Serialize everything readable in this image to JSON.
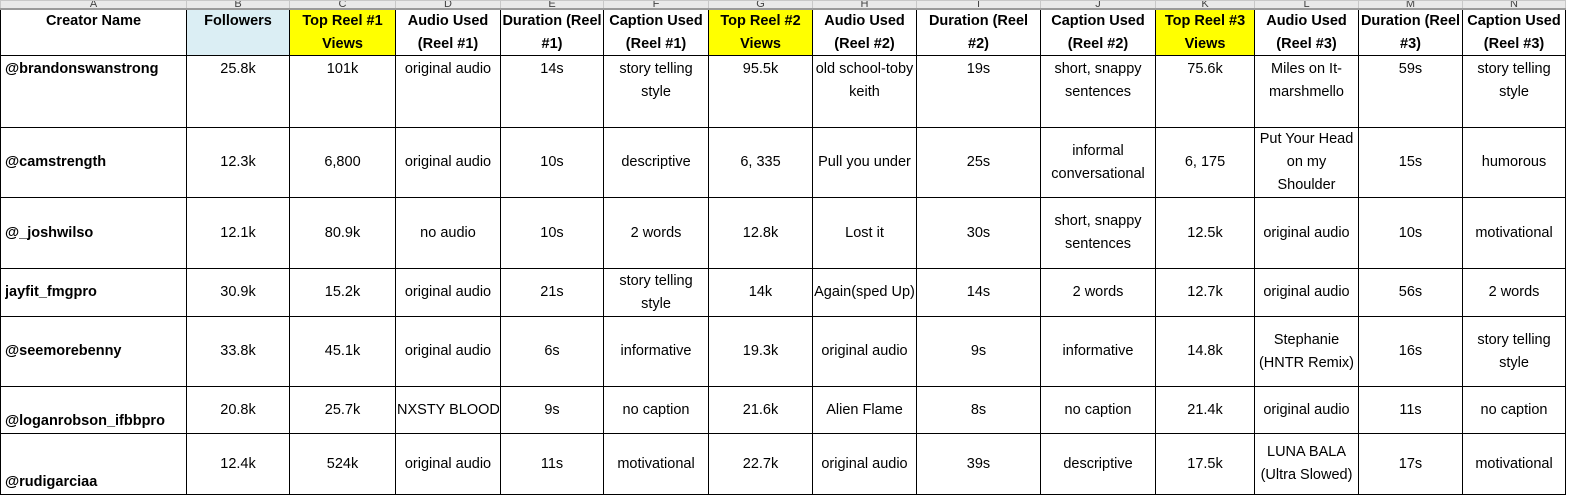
{
  "column_letters": [
    "A",
    "B",
    "C",
    "D",
    "E",
    "F",
    "G",
    "H",
    "I",
    "J",
    "K",
    "L",
    "M",
    "N"
  ],
  "headers": [
    "Creator Name",
    "Followers",
    "Top Reel #1 Views",
    "Audio Used (Reel #1)",
    "Duration (Reel #1)",
    "Caption Used (Reel #1)",
    "Top Reel #2 Views",
    "Audio Used (Reel #2)",
    "Duration (Reel #2)",
    "Caption Used (Reel #2)",
    "Top Reel #3 Views",
    "Audio Used (Reel #3)",
    "Duration (Reel #3)",
    "Caption Used (Reel #3)"
  ],
  "header_colors": {
    "followers": "#dbeef4",
    "views": "#ffff00"
  },
  "rows": [
    [
      "@brandonswanstrong",
      "25.8k",
      "101k",
      "original audio",
      "14s",
      "story telling style",
      "95.5k",
      "old school-toby keith",
      "19s",
      "short, snappy sentences",
      "75.6k",
      "Miles on It-marshmello",
      "59s",
      "story telling style"
    ],
    [
      "@camstrength",
      "12.3k",
      "6,800",
      "original audio",
      "10s",
      "descriptive",
      "6, 335",
      "Pull you under",
      "25s",
      "informal conversational",
      "6, 175",
      "Put Your Head on my Shoulder",
      "15s",
      "humorous"
    ],
    [
      "@_joshwilso",
      "12.1k",
      "80.9k",
      "no audio",
      "10s",
      "2 words",
      "12.8k",
      "Lost it",
      "30s",
      "short, snappy sentences",
      "12.5k",
      "original audio",
      "10s",
      "motivational"
    ],
    [
      "jayfit_fmgpro",
      "30.9k",
      "15.2k",
      "original audio",
      "21s",
      "story telling style",
      "14k",
      "Again(sped Up)",
      "14s",
      "2 words",
      "12.7k",
      "original audio",
      "56s",
      "2 words"
    ],
    [
      "@seemorebenny",
      "33.8k",
      "45.1k",
      "original audio",
      "6s",
      "informative",
      "19.3k",
      "original audio",
      "9s",
      "informative",
      "14.8k",
      "Stephanie (HNTR Remix)",
      "16s",
      "story telling style"
    ],
    [
      "@loganrobson_ifbbpro",
      "20.8k",
      "25.7k",
      "NXSTY BLOOD",
      "9s",
      "no caption",
      "21.6k",
      "Alien Flame",
      "8s",
      "no caption",
      "21.4k",
      "original audio",
      "11s",
      "no caption"
    ],
    [
      "@rudigarciaa",
      "12.4k",
      "524k",
      "original audio",
      "11s",
      "motivational",
      "22.7k",
      "original audio",
      "39s",
      "descriptive",
      "17.5k",
      "LUNA BALA (Ultra Slowed)",
      "17s",
      "motivational"
    ]
  ]
}
